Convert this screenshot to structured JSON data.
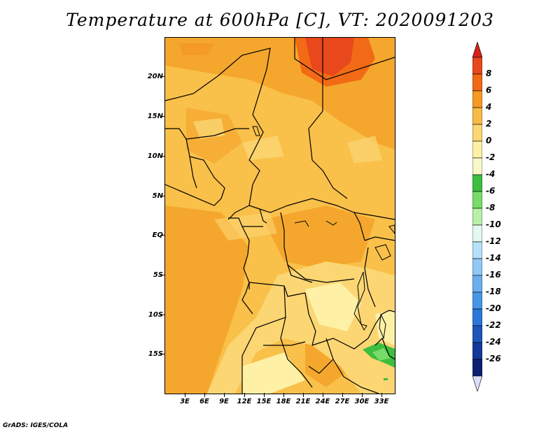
{
  "title": "Temperature at 600hPa [C], VT: 2020091203",
  "credit": "GrADS: IGES/COLA",
  "map": {
    "variable": "Temperature",
    "level": "600hPa",
    "units": "C",
    "valid_time": "2020091203",
    "lat_labels": [
      "20N",
      "15N",
      "10N",
      "5N",
      "EQ",
      "5S",
      "10S",
      "15S"
    ],
    "lon_labels": [
      "3E",
      "6E",
      "9E",
      "12E",
      "15E",
      "18E",
      "21E",
      "24E",
      "27E",
      "30E",
      "33E"
    ]
  },
  "legend": {
    "labels": [
      "8",
      "6",
      "4",
      "2",
      "0",
      "-2",
      "-4",
      "-6",
      "-8",
      "-10",
      "-12",
      "-14",
      "-16",
      "-18",
      "-20",
      "-22",
      "-24",
      "-26"
    ],
    "colors": [
      "#e8481c",
      "#f26a15",
      "#f59a24",
      "#f8bb45",
      "#fbd673",
      "#fef1a6",
      "#f7f9c8",
      "#3dbe3f",
      "#78dc6a",
      "#b8f0a8",
      "#e3f8ef",
      "#b6e0fa",
      "#90c8f6",
      "#6ab0ee",
      "#4796e6",
      "#2b77d8",
      "#1d56b7",
      "#15399a",
      "#0d1f70"
    ],
    "top_color": "#d8201b",
    "bottom_color": "#ddddf8"
  }
}
